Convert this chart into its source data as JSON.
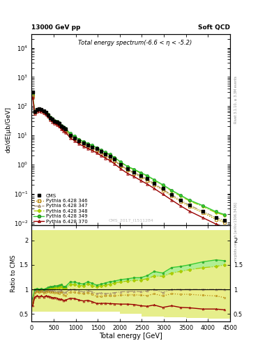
{
  "title_top_left": "13000 GeV pp",
  "title_top_right": "Soft QCD",
  "right_label_top": "Rivet 3.1.10, ≥ 3.3M events",
  "right_label_bottom": "mcplots.cern.ch [arXiv:1306.3436]",
  "watermark": "CMS_2017_I1511284",
  "plot_title": "Total energy spectrum(-6.6 < η < -5.2)",
  "xlabel": "Total energy [GeV]",
  "ylabel_top": "dσ/dE[μb/GeV]",
  "ylabel_bottom": "Ratio to CMS",
  "xlim": [
    0,
    4500
  ],
  "ylim_top_log_min": 0.008,
  "ylim_top_log_max": 30000,
  "ylim_bottom_min": 0.35,
  "ylim_bottom_max": 2.3,
  "cms_x": [
    25,
    75,
    125,
    175,
    225,
    275,
    325,
    375,
    425,
    475,
    525,
    575,
    625,
    675,
    725,
    775,
    875,
    975,
    1075,
    1175,
    1275,
    1375,
    1475,
    1575,
    1675,
    1775,
    1875,
    2025,
    2175,
    2325,
    2475,
    2625,
    2775,
    2975,
    3175,
    3375,
    3575,
    3875,
    4175,
    4375
  ],
  "cms_y": [
    300,
    65,
    75,
    80,
    75,
    70,
    60,
    50,
    40,
    35,
    30,
    28,
    25,
    20,
    18,
    16,
    10,
    8,
    6.5,
    5.5,
    4.5,
    4.0,
    3.5,
    2.8,
    2.3,
    1.9,
    1.5,
    1.0,
    0.7,
    0.55,
    0.42,
    0.32,
    0.22,
    0.15,
    0.09,
    0.06,
    0.04,
    0.025,
    0.015,
    0.012
  ],
  "p346_x": [
    25,
    75,
    125,
    175,
    225,
    275,
    325,
    375,
    425,
    475,
    525,
    575,
    625,
    675,
    725,
    775,
    875,
    975,
    1075,
    1175,
    1275,
    1375,
    1475,
    1575,
    1675,
    1775,
    1875,
    2025,
    2175,
    2325,
    2475,
    2625,
    2775,
    2975,
    3175,
    3375,
    3575,
    3875,
    4175,
    4375
  ],
  "p346_y": [
    220,
    60,
    72,
    75,
    72,
    65,
    57,
    48,
    38,
    33,
    28,
    26,
    23,
    19,
    16,
    14,
    9.5,
    7.5,
    6.0,
    5.0,
    4.2,
    3.6,
    3.0,
    2.4,
    2.0,
    1.65,
    1.3,
    0.88,
    0.62,
    0.49,
    0.37,
    0.28,
    0.2,
    0.13,
    0.082,
    0.054,
    0.036,
    0.022,
    0.013,
    0.01
  ],
  "p347_x": [
    25,
    75,
    125,
    175,
    225,
    275,
    325,
    375,
    425,
    475,
    525,
    575,
    625,
    675,
    725,
    775,
    875,
    975,
    1075,
    1175,
    1275,
    1375,
    1475,
    1575,
    1675,
    1775,
    1875,
    2025,
    2175,
    2325,
    2475,
    2625,
    2775,
    2975,
    3175,
    3375,
    3575,
    3875,
    4175,
    4375
  ],
  "p347_y": [
    230,
    62,
    73,
    77,
    73,
    67,
    58,
    49,
    39,
    34,
    29,
    27,
    24,
    19.5,
    17,
    15,
    10,
    8.0,
    6.3,
    5.2,
    4.4,
    3.8,
    3.2,
    2.6,
    2.1,
    1.75,
    1.4,
    0.95,
    0.67,
    0.53,
    0.4,
    0.31,
    0.22,
    0.14,
    0.09,
    0.06,
    0.04,
    0.025,
    0.015,
    0.012
  ],
  "p348_x": [
    25,
    75,
    125,
    175,
    225,
    275,
    325,
    375,
    425,
    475,
    525,
    575,
    625,
    675,
    725,
    775,
    875,
    975,
    1075,
    1175,
    1275,
    1375,
    1475,
    1575,
    1675,
    1775,
    1875,
    2025,
    2175,
    2325,
    2475,
    2625,
    2775,
    2975,
    3175,
    3375,
    3575,
    3875,
    4175,
    4375
  ],
  "p348_y": [
    240,
    64,
    75,
    79,
    75,
    69,
    60,
    51,
    41,
    36,
    31,
    29,
    26,
    21,
    18.5,
    16.5,
    11,
    8.8,
    7.0,
    5.9,
    5.0,
    4.3,
    3.7,
    3.0,
    2.5,
    2.1,
    1.7,
    1.15,
    0.82,
    0.65,
    0.5,
    0.39,
    0.28,
    0.19,
    0.12,
    0.082,
    0.056,
    0.036,
    0.022,
    0.018
  ],
  "p349_x": [
    25,
    75,
    125,
    175,
    225,
    275,
    325,
    375,
    425,
    475,
    525,
    575,
    625,
    675,
    725,
    775,
    875,
    975,
    1075,
    1175,
    1275,
    1375,
    1475,
    1575,
    1675,
    1775,
    1875,
    2025,
    2175,
    2325,
    2475,
    2625,
    2775,
    2975,
    3175,
    3375,
    3575,
    3875,
    4175,
    4375
  ],
  "p349_y": [
    245,
    65,
    76,
    80,
    76,
    70,
    61,
    52,
    42,
    37,
    32,
    30,
    27,
    22,
    19,
    17,
    11.5,
    9.2,
    7.3,
    6.1,
    5.2,
    4.5,
    3.8,
    3.1,
    2.6,
    2.2,
    1.75,
    1.2,
    0.85,
    0.68,
    0.52,
    0.41,
    0.3,
    0.2,
    0.13,
    0.088,
    0.06,
    0.039,
    0.024,
    0.019
  ],
  "p370_x": [
    25,
    75,
    125,
    175,
    225,
    275,
    325,
    375,
    425,
    475,
    525,
    575,
    625,
    675,
    725,
    775,
    875,
    975,
    1075,
    1175,
    1275,
    1375,
    1475,
    1575,
    1675,
    1775,
    1875,
    2025,
    2175,
    2325,
    2475,
    2625,
    2775,
    2975,
    3175,
    3375,
    3575,
    3875,
    4175,
    4375
  ],
  "p370_y": [
    200,
    55,
    65,
    68,
    65,
    59,
    52,
    43,
    34,
    29,
    25,
    23,
    20,
    16,
    14,
    12.5,
    8.2,
    6.5,
    5.1,
    4.2,
    3.5,
    3.0,
    2.5,
    2.0,
    1.65,
    1.35,
    1.06,
    0.7,
    0.49,
    0.38,
    0.28,
    0.21,
    0.15,
    0.095,
    0.06,
    0.038,
    0.025,
    0.015,
    0.009,
    0.007
  ],
  "color_cms": "#000000",
  "color_346": "#b8860b",
  "color_347": "#a0896a",
  "color_348": "#aacc00",
  "color_349": "#33cc33",
  "color_370": "#990000",
  "color_yellow_band": "#eeee88",
  "color_green_band": "#99ee99"
}
